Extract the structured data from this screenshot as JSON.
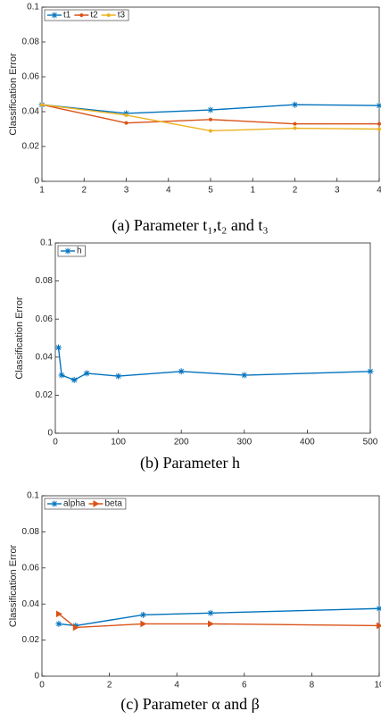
{
  "chart_data": [
    {
      "type": "line",
      "caption": "(a) Parameter t₁,t₂ and t₃",
      "y_label": "Classification Error",
      "xlim": [
        1,
        9
      ],
      "xticks": [
        1,
        2,
        3,
        4,
        5,
        {
          "value": 6,
          "label": "1"
        },
        {
          "value": 7,
          "label": "2"
        },
        {
          "value": 8,
          "label": "3"
        },
        {
          "value": 9,
          "label": "4"
        }
      ],
      "ylim": [
        0,
        0.1
      ],
      "yticks": [
        0,
        0.02,
        0.04,
        0.06,
        0.08,
        0.1
      ],
      "legend": "upper left",
      "legend_layout": "horizontal",
      "series": [
        {
          "name": "t1",
          "color": "#0072bd",
          "marker": "star",
          "x": [
            1,
            3,
            5,
            7,
            9
          ],
          "values": [
            0.044,
            0.039,
            0.041,
            0.044,
            0.0435
          ]
        },
        {
          "name": "t2",
          "color": "#d95319",
          "marker": "dot",
          "x": [
            1,
            3,
            5,
            7,
            9
          ],
          "values": [
            0.044,
            0.0335,
            0.0355,
            0.033,
            0.033
          ]
        },
        {
          "name": "t3",
          "color": "#edb120",
          "marker": "dot",
          "x": [
            1,
            3,
            5,
            7,
            9
          ],
          "values": [
            0.044,
            0.038,
            0.029,
            0.0305,
            0.03
          ]
        }
      ]
    },
    {
      "type": "line",
      "caption": "(b) Parameter h",
      "y_label": "Classification Error",
      "xlim": [
        0,
        500
      ],
      "xticks": [
        0,
        100,
        200,
        300,
        400,
        500
      ],
      "ylim": [
        0,
        0.1
      ],
      "yticks": [
        0,
        0.02,
        0.04,
        0.06,
        0.08,
        0.1
      ],
      "legend": "upper left",
      "legend_layout": "horizontal",
      "series": [
        {
          "name": "h",
          "color": "#0072bd",
          "marker": "star",
          "x": [
            5,
            10,
            30,
            50,
            100,
            200,
            300,
            500
          ],
          "values": [
            0.045,
            0.0305,
            0.028,
            0.0315,
            0.03,
            0.0325,
            0.0305,
            0.0325
          ]
        }
      ]
    },
    {
      "type": "line",
      "caption": "(c) Parameter α and β",
      "y_label": "Classification Error",
      "xlim": [
        0,
        10
      ],
      "xticks": [
        0,
        2,
        4,
        6,
        8,
        10
      ],
      "ylim": [
        0,
        0.1
      ],
      "yticks": [
        0,
        0.02,
        0.04,
        0.06,
        0.08,
        0.1
      ],
      "legend": "upper left",
      "legend_layout": "horizontal",
      "series": [
        {
          "name": "alpha",
          "color": "#0072bd",
          "marker": "star",
          "x": [
            0.5,
            1,
            3,
            5,
            10
          ],
          "values": [
            0.029,
            0.028,
            0.034,
            0.035,
            0.0375
          ]
        },
        {
          "name": "beta",
          "color": "#d95319",
          "marker": "triangle",
          "x": [
            0.5,
            1,
            3,
            5,
            10
          ],
          "values": [
            0.0345,
            0.027,
            0.029,
            0.029,
            0.028
          ]
        }
      ]
    }
  ]
}
